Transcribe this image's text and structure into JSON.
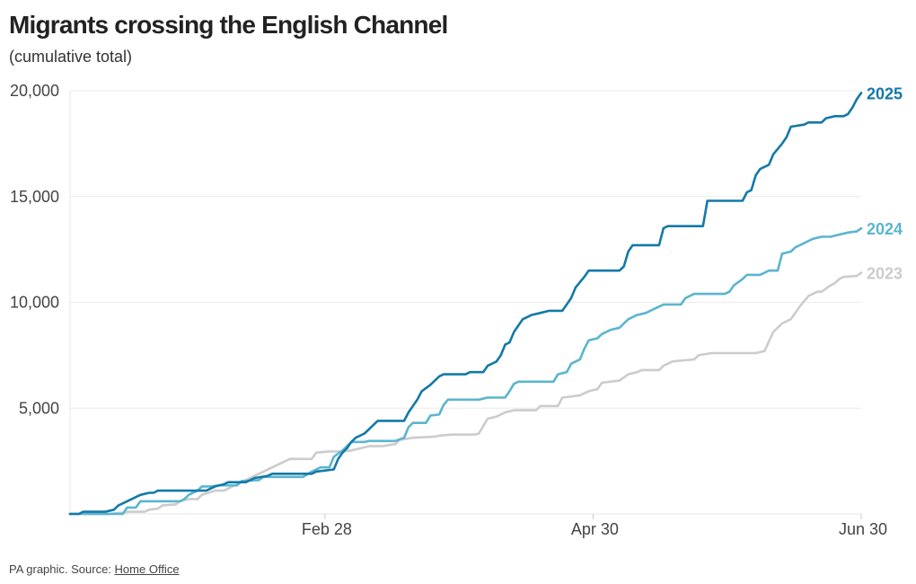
{
  "chart_data": {
    "type": "line",
    "title": "Migrants crossing the English Channel",
    "subtitle": "(cumulative total)",
    "y_ticks": [
      {
        "value": 5000,
        "label": "5,000"
      },
      {
        "value": 10000,
        "label": "10,000"
      },
      {
        "value": 15000,
        "label": "15,000"
      },
      {
        "value": 20000,
        "label": "20,000"
      }
    ],
    "x_ticks": [
      {
        "day": 59,
        "label": "Feb 28"
      },
      {
        "day": 120,
        "label": "Apr 30"
      },
      {
        "day": 181,
        "label": "Jun 30"
      }
    ],
    "xlim": [
      1,
      181
    ],
    "ylim": [
      0,
      20000
    ],
    "grid": true,
    "series": [
      {
        "name": "2023",
        "color": "#cccccc",
        "points": [
          [
            1,
            0
          ],
          [
            10,
            0
          ],
          [
            12,
            50
          ],
          [
            13,
            50
          ],
          [
            14,
            100
          ],
          [
            18,
            100
          ],
          [
            19,
            200
          ],
          [
            21,
            250
          ],
          [
            22,
            400
          ],
          [
            25,
            450
          ],
          [
            26,
            600
          ],
          [
            28,
            700
          ],
          [
            30,
            700
          ],
          [
            31,
            900
          ],
          [
            34,
            1100
          ],
          [
            36,
            1100
          ],
          [
            37,
            1200
          ],
          [
            39,
            1400
          ],
          [
            41,
            1600
          ],
          [
            43,
            1800
          ],
          [
            45,
            2000
          ],
          [
            47,
            2200
          ],
          [
            49,
            2400
          ],
          [
            51,
            2600
          ],
          [
            54,
            2600
          ],
          [
            56,
            2600
          ],
          [
            57,
            2900
          ],
          [
            60,
            2950
          ],
          [
            63,
            2950
          ],
          [
            65,
            3000
          ],
          [
            67,
            3100
          ],
          [
            69,
            3200
          ],
          [
            72,
            3200
          ],
          [
            75,
            3300
          ],
          [
            76,
            3500
          ],
          [
            79,
            3600
          ],
          [
            84,
            3650
          ],
          [
            85,
            3700
          ],
          [
            88,
            3750
          ],
          [
            93,
            3750
          ],
          [
            94,
            3800
          ],
          [
            96,
            4500
          ],
          [
            98,
            4600
          ],
          [
            100,
            4800
          ],
          [
            102,
            4900
          ],
          [
            107,
            4900
          ],
          [
            108,
            5100
          ],
          [
            112,
            5100
          ],
          [
            113,
            5500
          ],
          [
            117,
            5600
          ],
          [
            119,
            5800
          ],
          [
            121,
            5900
          ],
          [
            122,
            6200
          ],
          [
            126,
            6300
          ],
          [
            128,
            6600
          ],
          [
            130,
            6700
          ],
          [
            131,
            6800
          ],
          [
            135,
            6800
          ],
          [
            136,
            7000
          ],
          [
            138,
            7200
          ],
          [
            140,
            7250
          ],
          [
            143,
            7300
          ],
          [
            144,
            7500
          ],
          [
            147,
            7600
          ],
          [
            157,
            7600
          ],
          [
            159,
            7700
          ],
          [
            161,
            8600
          ],
          [
            163,
            9000
          ],
          [
            165,
            9200
          ],
          [
            167,
            9800
          ],
          [
            169,
            10300
          ],
          [
            171,
            10500
          ],
          [
            172,
            10500
          ],
          [
            174,
            10800
          ],
          [
            175,
            10900
          ],
          [
            176,
            11100
          ],
          [
            177,
            11200
          ],
          [
            180,
            11250
          ],
          [
            181,
            11400
          ]
        ]
      },
      {
        "name": "2024",
        "color": "#5bb5cf",
        "points": [
          [
            1,
            0
          ],
          [
            13,
            0
          ],
          [
            14,
            300
          ],
          [
            16,
            300
          ],
          [
            17,
            600
          ],
          [
            26,
            600
          ],
          [
            27,
            700
          ],
          [
            28,
            900
          ],
          [
            30,
            1100
          ],
          [
            31,
            1300
          ],
          [
            33,
            1300
          ],
          [
            35,
            1350
          ],
          [
            39,
            1350
          ],
          [
            40,
            1550
          ],
          [
            44,
            1600
          ],
          [
            45,
            1750
          ],
          [
            54,
            1750
          ],
          [
            56,
            2000
          ],
          [
            58,
            2200
          ],
          [
            60,
            2200
          ],
          [
            61,
            2700
          ],
          [
            63,
            3000
          ],
          [
            64,
            3200
          ],
          [
            65,
            3400
          ],
          [
            68,
            3400
          ],
          [
            69,
            3450
          ],
          [
            75,
            3450
          ],
          [
            77,
            3600
          ],
          [
            78,
            4100
          ],
          [
            79,
            4300
          ],
          [
            82,
            4300
          ],
          [
            83,
            4650
          ],
          [
            85,
            4700
          ],
          [
            86,
            5150
          ],
          [
            87,
            5400
          ],
          [
            94,
            5400
          ],
          [
            96,
            5500
          ],
          [
            100,
            5500
          ],
          [
            101,
            5800
          ],
          [
            102,
            6150
          ],
          [
            103,
            6250
          ],
          [
            111,
            6250
          ],
          [
            112,
            6600
          ],
          [
            114,
            6700
          ],
          [
            115,
            7100
          ],
          [
            117,
            7300
          ],
          [
            118,
            7800
          ],
          [
            119,
            8200
          ],
          [
            121,
            8300
          ],
          [
            122,
            8500
          ],
          [
            124,
            8700
          ],
          [
            126,
            8800
          ],
          [
            128,
            9200
          ],
          [
            130,
            9400
          ],
          [
            132,
            9500
          ],
          [
            134,
            9700
          ],
          [
            136,
            9900
          ],
          [
            140,
            9900
          ],
          [
            141,
            10200
          ],
          [
            143,
            10400
          ],
          [
            150,
            10400
          ],
          [
            151,
            10500
          ],
          [
            152,
            10800
          ],
          [
            154,
            11100
          ],
          [
            155,
            11300
          ],
          [
            158,
            11300
          ],
          [
            160,
            11500
          ],
          [
            162,
            11500
          ],
          [
            163,
            12300
          ],
          [
            165,
            12400
          ],
          [
            166,
            12600
          ],
          [
            168,
            12800
          ],
          [
            170,
            13000
          ],
          [
            172,
            13100
          ],
          [
            174,
            13100
          ],
          [
            176,
            13200
          ],
          [
            178,
            13300
          ],
          [
            180,
            13350
          ],
          [
            181,
            13500
          ]
        ]
      },
      {
        "name": "2025",
        "color": "#1479a8",
        "points": [
          [
            1,
            0
          ],
          [
            3,
            0
          ],
          [
            4,
            100
          ],
          [
            9,
            100
          ],
          [
            11,
            200
          ],
          [
            12,
            400
          ],
          [
            14,
            600
          ],
          [
            16,
            800
          ],
          [
            17,
            900
          ],
          [
            19,
            1000
          ],
          [
            20,
            1000
          ],
          [
            21,
            1100
          ],
          [
            32,
            1100
          ],
          [
            34,
            1300
          ],
          [
            36,
            1400
          ],
          [
            37,
            1500
          ],
          [
            41,
            1500
          ],
          [
            43,
            1700
          ],
          [
            46,
            1800
          ],
          [
            47,
            1900
          ],
          [
            56,
            1900
          ],
          [
            57,
            2000
          ],
          [
            61,
            2100
          ],
          [
            62,
            2600
          ],
          [
            63,
            2900
          ],
          [
            64,
            3100
          ],
          [
            65,
            3400
          ],
          [
            66,
            3600
          ],
          [
            68,
            3800
          ],
          [
            69,
            4000
          ],
          [
            70,
            4200
          ],
          [
            71,
            4400
          ],
          [
            77,
            4400
          ],
          [
            78,
            4800
          ],
          [
            79,
            5100
          ],
          [
            80,
            5400
          ],
          [
            81,
            5800
          ],
          [
            83,
            6100
          ],
          [
            85,
            6500
          ],
          [
            86,
            6600
          ],
          [
            91,
            6600
          ],
          [
            92,
            6700
          ],
          [
            95,
            6700
          ],
          [
            96,
            7000
          ],
          [
            98,
            7200
          ],
          [
            99,
            7500
          ],
          [
            100,
            8000
          ],
          [
            101,
            8100
          ],
          [
            102,
            8600
          ],
          [
            103,
            8900
          ],
          [
            104,
            9200
          ],
          [
            106,
            9400
          ],
          [
            108,
            9500
          ],
          [
            110,
            9600
          ],
          [
            113,
            9600
          ],
          [
            114,
            9900
          ],
          [
            115,
            10200
          ],
          [
            116,
            10700
          ],
          [
            118,
            11200
          ],
          [
            119,
            11500
          ],
          [
            126,
            11500
          ],
          [
            127,
            11700
          ],
          [
            128,
            12400
          ],
          [
            129,
            12700
          ],
          [
            135,
            12700
          ],
          [
            136,
            13500
          ],
          [
            137,
            13600
          ],
          [
            145,
            13600
          ],
          [
            146,
            14800
          ],
          [
            154,
            14800
          ],
          [
            155,
            15200
          ],
          [
            156,
            15300
          ],
          [
            157,
            16000
          ],
          [
            158,
            16300
          ],
          [
            160,
            16500
          ],
          [
            161,
            17000
          ],
          [
            163,
            17500
          ],
          [
            164,
            17800
          ],
          [
            165,
            18300
          ],
          [
            168,
            18400
          ],
          [
            169,
            18500
          ],
          [
            172,
            18500
          ],
          [
            173,
            18700
          ],
          [
            175,
            18800
          ],
          [
            177,
            18800
          ],
          [
            178,
            18900
          ],
          [
            179,
            19200
          ],
          [
            180,
            19600
          ],
          [
            181,
            19900
          ]
        ]
      }
    ]
  },
  "footer": {
    "prefix": "PA graphic. Source: ",
    "source_link": "Home Office"
  }
}
